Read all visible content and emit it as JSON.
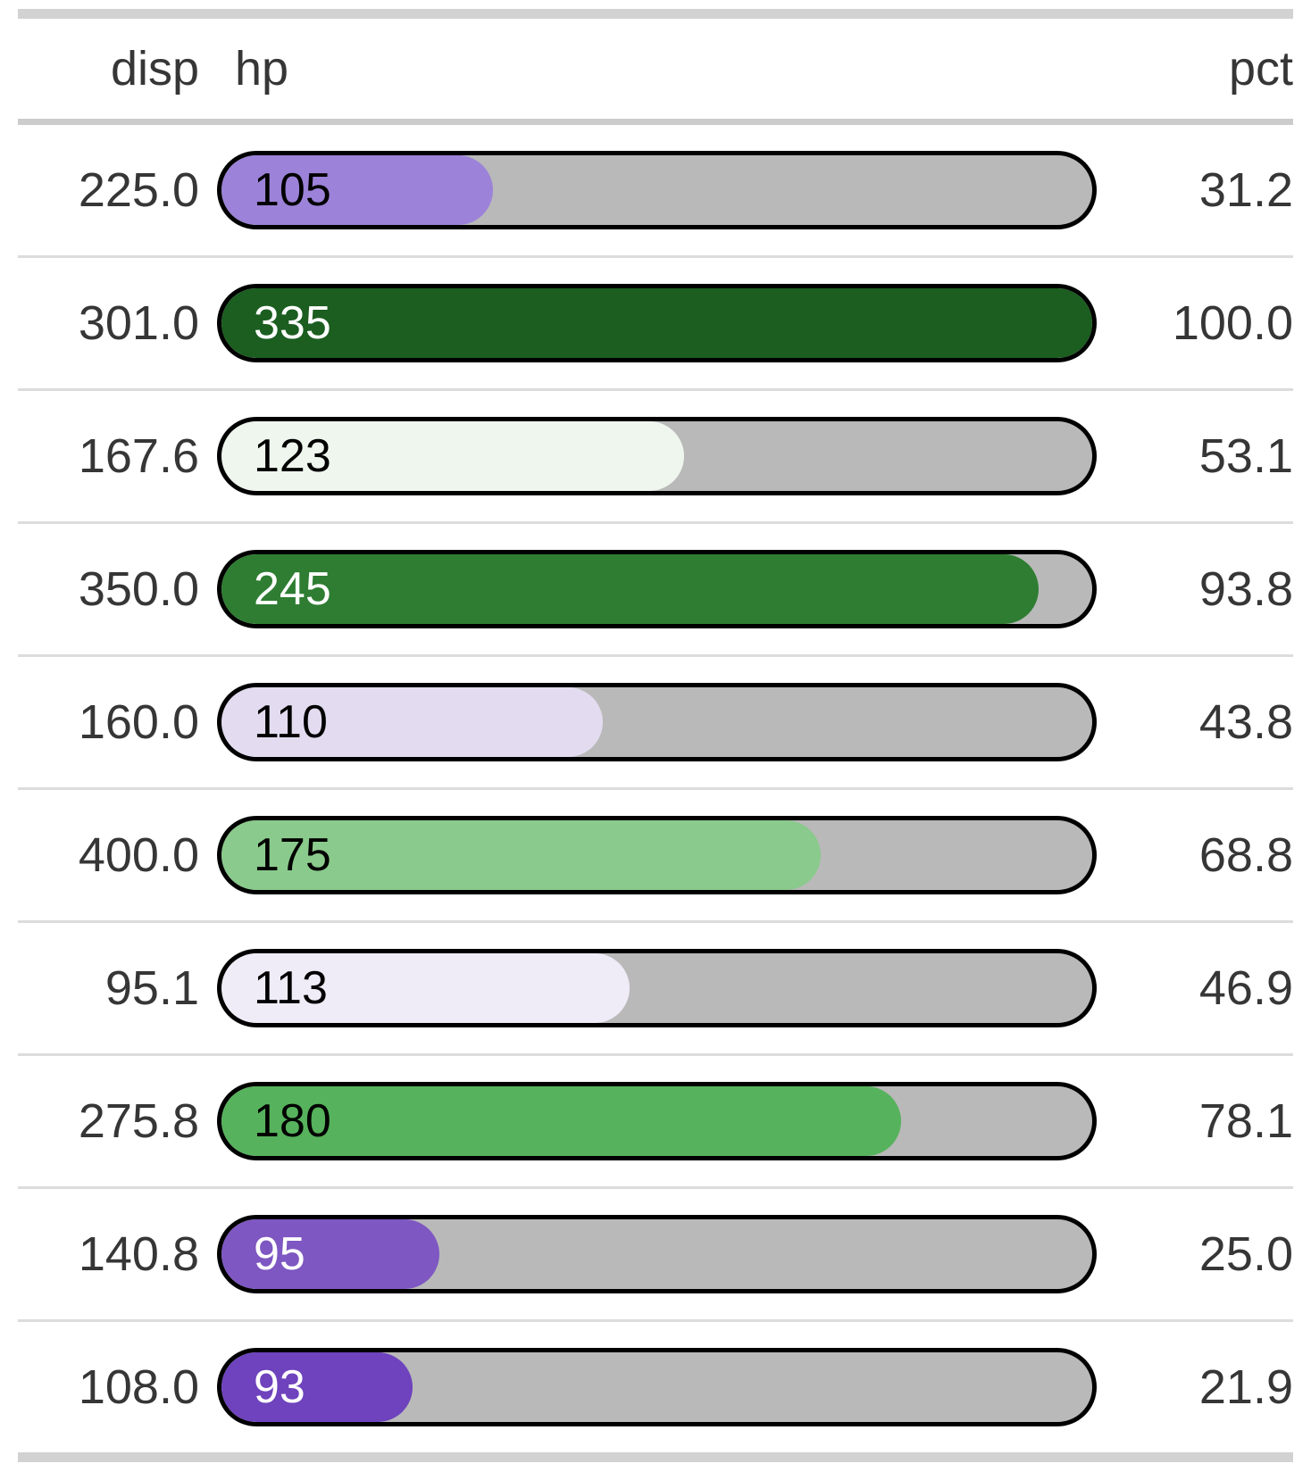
{
  "table": {
    "columns": [
      {
        "label": "disp"
      },
      {
        "label": "hp"
      },
      {
        "label": "pct"
      }
    ],
    "rows": [
      {
        "disp": "225.0",
        "hp": "105",
        "pct": "31.2",
        "fill_pct": 31.2,
        "fill_color": "#9c82d8",
        "label_color": "#000000"
      },
      {
        "disp": "301.0",
        "hp": "335",
        "pct": "100.0",
        "fill_pct": 100.0,
        "fill_color": "#1b5e20",
        "label_color": "#ffffff"
      },
      {
        "disp": "167.6",
        "hp": "123",
        "pct": "53.1",
        "fill_pct": 53.1,
        "fill_color": "#eef6ee",
        "label_color": "#000000"
      },
      {
        "disp": "350.0",
        "hp": "245",
        "pct": "93.8",
        "fill_pct": 93.8,
        "fill_color": "#2e7d32",
        "label_color": "#ffffff"
      },
      {
        "disp": "160.0",
        "hp": "110",
        "pct": "43.8",
        "fill_pct": 43.8,
        "fill_color": "#e3dcf0",
        "label_color": "#000000"
      },
      {
        "disp": "400.0",
        "hp": "175",
        "pct": "68.8",
        "fill_pct": 68.8,
        "fill_color": "#8aca8c",
        "label_color": "#000000"
      },
      {
        "disp": "95.1",
        "hp": "113",
        "pct": "46.9",
        "fill_pct": 46.9,
        "fill_color": "#efecf7",
        "label_color": "#000000"
      },
      {
        "disp": "275.8",
        "hp": "180",
        "pct": "78.1",
        "fill_pct": 78.1,
        "fill_color": "#56b25c",
        "label_color": "#000000"
      },
      {
        "disp": "140.8",
        "hp": "95",
        "pct": "25.0",
        "fill_pct": 25.0,
        "fill_color": "#7e57c2",
        "label_color": "#ffffff"
      },
      {
        "disp": "108.0",
        "hp": "93",
        "pct": "21.9",
        "fill_pct": 21.9,
        "fill_color": "#6e43bd",
        "label_color": "#ffffff"
      }
    ],
    "bar": {
      "track_color": "#b9b9b9",
      "border_color": "#000000"
    },
    "colors": {
      "text": "#363636",
      "thick_border": "#d2d2d2",
      "header_border": "#cccccc",
      "row_separator": "#dcdcdc"
    }
  },
  "chart_data": {
    "type": "table",
    "title": "",
    "columns": [
      "disp",
      "hp",
      "pct"
    ],
    "rows": [
      [
        225.0,
        105,
        31.2
      ],
      [
        301.0,
        335,
        100.0
      ],
      [
        167.6,
        123,
        53.1
      ],
      [
        350.0,
        245,
        93.8
      ],
      [
        160.0,
        110,
        43.8
      ],
      [
        400.0,
        175,
        68.8
      ],
      [
        95.1,
        113,
        46.9
      ],
      [
        275.8,
        180,
        78.1
      ],
      [
        140.8,
        95,
        25.0
      ],
      [
        108.0,
        93,
        21.9
      ]
    ],
    "bar_column": "hp",
    "bar_fill_percent_column": "pct",
    "bar_fill_range": [
      0,
      100
    ],
    "bar_color_mapping": "diverging purple (low hp) to green (high hp)",
    "legend": "none",
    "grid": "off"
  }
}
